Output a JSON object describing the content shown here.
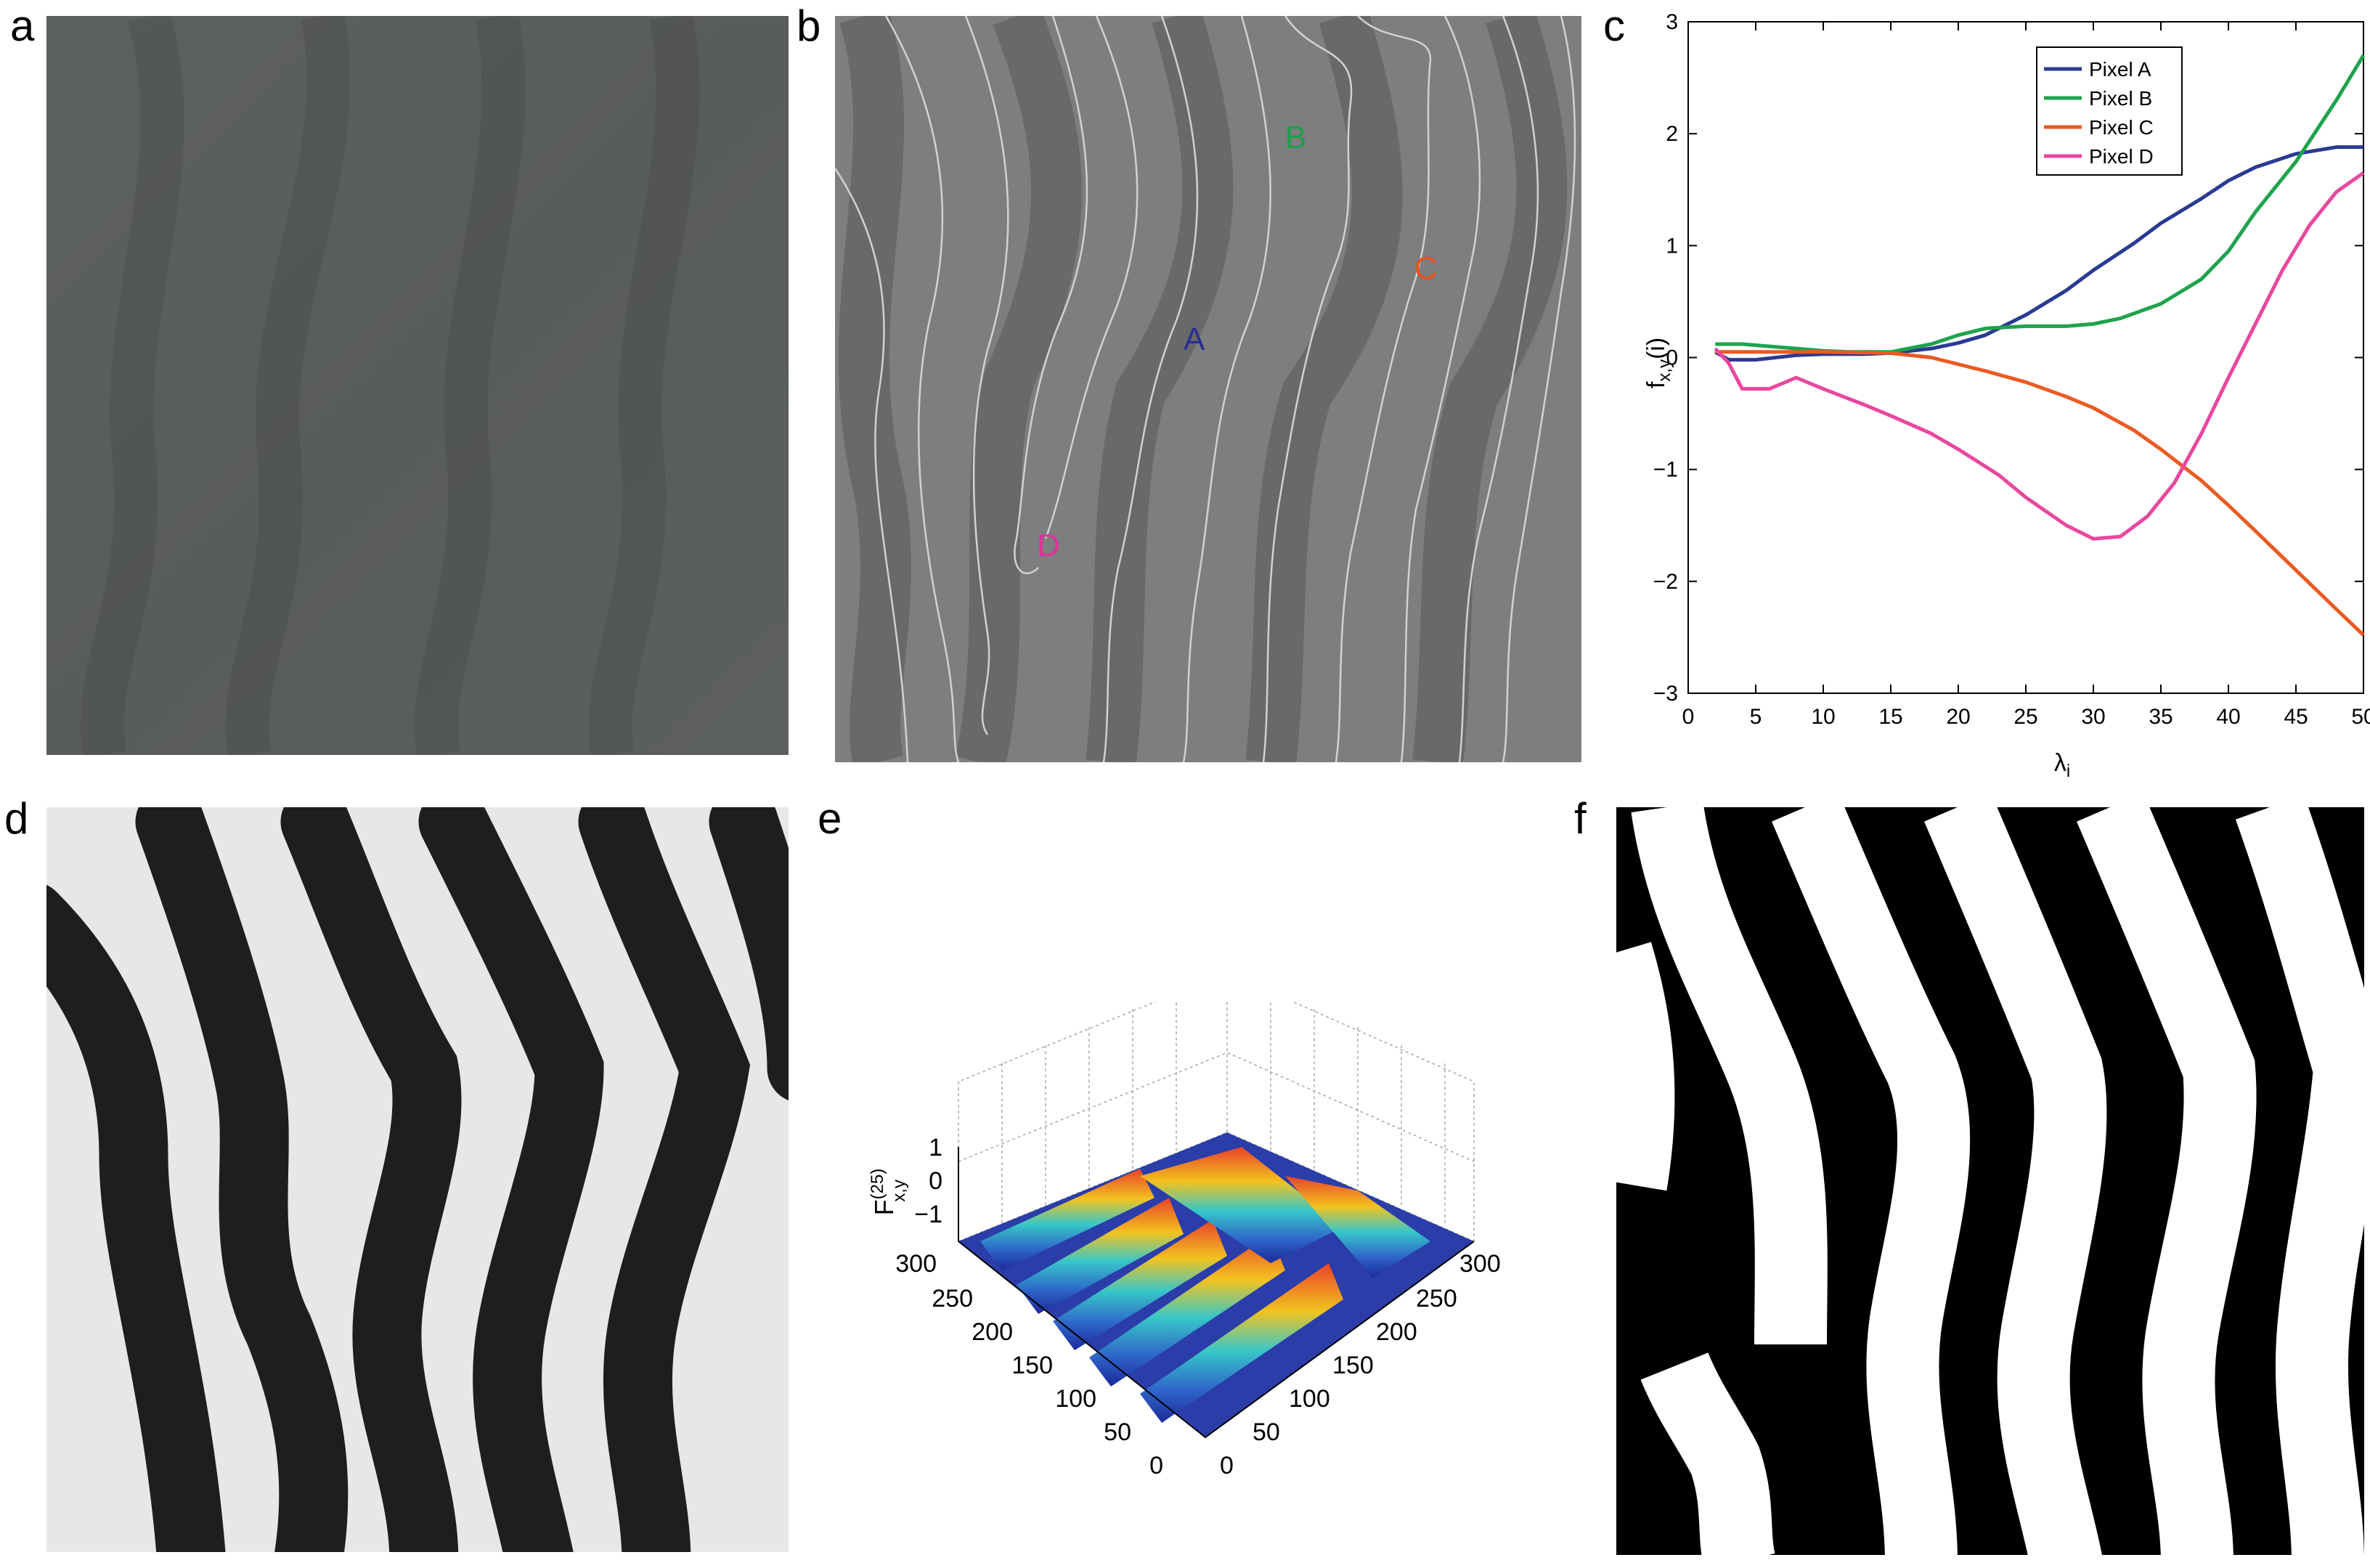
{
  "panels": {
    "a": {
      "letter": "a"
    },
    "b": {
      "letter": "b",
      "pixel_labels": [
        {
          "label": "A",
          "color": "#2b2f8f"
        },
        {
          "label": "B",
          "color": "#1f9e4a"
        },
        {
          "label": "C",
          "color": "#e8531f"
        },
        {
          "label": "D",
          "color": "#e0329a"
        }
      ]
    },
    "c": {
      "letter": "c"
    },
    "d": {
      "letter": "d"
    },
    "e": {
      "letter": "e",
      "zlabel": "F",
      "zlabel_sup": "(25)",
      "zlabel_sub": "x,y",
      "z_ticks": [
        "1",
        "0",
        "−1"
      ],
      "y_ticks": [
        "0",
        "50",
        "100",
        "150",
        "200",
        "250",
        "300"
      ],
      "x_ticks": [
        "0",
        "50",
        "100",
        "150",
        "200",
        "250",
        "300"
      ]
    },
    "f": {
      "letter": "f"
    }
  },
  "chart_data": {
    "type": "line",
    "xlabel": "λ",
    "xlabel_sub": "i",
    "ylabel": "f",
    "ylabel_sub": "x,y",
    "ylabel_suffix": "(i)",
    "xlim": [
      0,
      50
    ],
    "ylim": [
      -3,
      3
    ],
    "x_ticks": [
      0,
      5,
      10,
      15,
      20,
      25,
      30,
      35,
      40,
      45,
      50
    ],
    "y_ticks": [
      3,
      2,
      1,
      0,
      -1,
      -2,
      -3
    ],
    "y_tick_labels": [
      "3",
      "2",
      "1",
      "0",
      "−1",
      "−2",
      "−3"
    ],
    "legend_position": "top-right",
    "series": [
      {
        "name": "Pixel A",
        "color": "#2a3a93",
        "x": [
          2,
          3,
          5,
          8,
          10,
          13,
          15,
          18,
          20,
          22,
          25,
          28,
          30,
          33,
          35,
          38,
          40,
          42,
          45,
          48,
          50
        ],
        "y": [
          0.05,
          -0.02,
          -0.02,
          0.02,
          0.03,
          0.03,
          0.04,
          0.08,
          0.13,
          0.2,
          0.38,
          0.6,
          0.78,
          1.02,
          1.2,
          1.42,
          1.58,
          1.7,
          1.82,
          1.88,
          1.88
        ]
      },
      {
        "name": "Pixel B",
        "color": "#1ea34d",
        "x": [
          2,
          4,
          6,
          8,
          10,
          12,
          15,
          18,
          20,
          22,
          25,
          28,
          30,
          32,
          35,
          38,
          40,
          42,
          45,
          48,
          50
        ],
        "y": [
          0.12,
          0.12,
          0.1,
          0.08,
          0.06,
          0.05,
          0.05,
          0.12,
          0.2,
          0.26,
          0.28,
          0.28,
          0.3,
          0.35,
          0.48,
          0.7,
          0.95,
          1.3,
          1.75,
          2.3,
          2.7
        ]
      },
      {
        "name": "Pixel C",
        "color": "#ea5a22",
        "x": [
          2,
          5,
          10,
          15,
          18,
          20,
          22,
          25,
          28,
          30,
          33,
          35,
          38,
          40,
          42,
          45,
          48,
          50
        ],
        "y": [
          0.05,
          0.05,
          0.05,
          0.04,
          0.0,
          -0.06,
          -0.12,
          -0.22,
          -0.35,
          -0.45,
          -0.65,
          -0.82,
          -1.1,
          -1.32,
          -1.55,
          -1.9,
          -2.25,
          -2.48
        ]
      },
      {
        "name": "Pixel D",
        "color": "#e8489e",
        "x": [
          2,
          3,
          4,
          6,
          8,
          10,
          13,
          15,
          18,
          20,
          23,
          25,
          28,
          30,
          32,
          34,
          36,
          38,
          40,
          42,
          44,
          46,
          48,
          50
        ],
        "y": [
          0.08,
          -0.05,
          -0.28,
          -0.28,
          -0.18,
          -0.28,
          -0.42,
          -0.52,
          -0.68,
          -0.82,
          -1.05,
          -1.25,
          -1.5,
          -1.62,
          -1.6,
          -1.42,
          -1.12,
          -0.68,
          -0.18,
          0.3,
          0.78,
          1.18,
          1.48,
          1.65
        ]
      }
    ]
  }
}
